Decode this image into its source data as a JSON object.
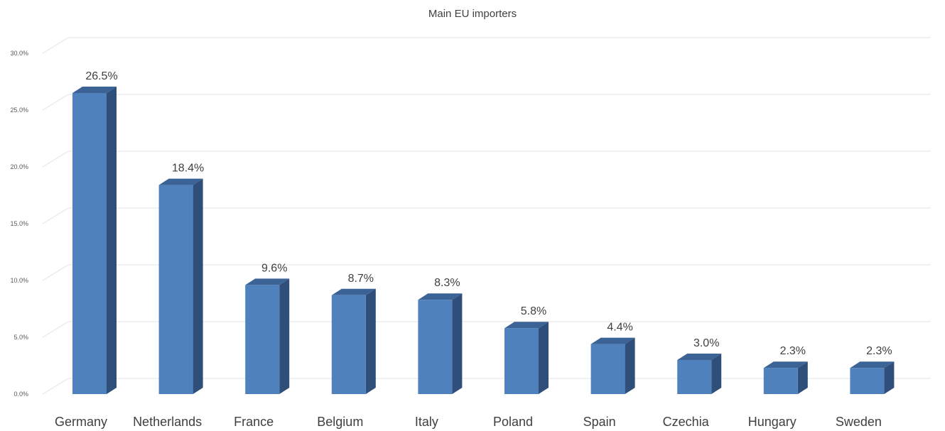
{
  "chart_data": {
    "type": "bar",
    "title": "Main EU importers",
    "categories": [
      "Germany",
      "Netherlands",
      "France",
      "Belgium",
      "Italy",
      "Poland",
      "Spain",
      "Czechia",
      "Hungary",
      "Sweden"
    ],
    "values": [
      26.5,
      18.4,
      9.6,
      8.7,
      8.3,
      5.8,
      4.4,
      3.0,
      2.3,
      2.3
    ],
    "data_labels": [
      "26.5%",
      "18.4%",
      "9.6%",
      "8.7%",
      "8.3%",
      "5.8%",
      "4.4%",
      "3.0%",
      "2.3%",
      "2.3%"
    ],
    "yticks": [
      "0.0%",
      "5.0%",
      "10.0%",
      "15.0%",
      "20.0%",
      "25.0%",
      "30.0%"
    ],
    "ylim": [
      0,
      30
    ],
    "grid": true,
    "legend": false,
    "colors": {
      "bar_front": "#4f81bd",
      "bar_side": "#2f4f7a",
      "bar_top": "#3c6396",
      "grid": "#e3e3e3"
    }
  }
}
